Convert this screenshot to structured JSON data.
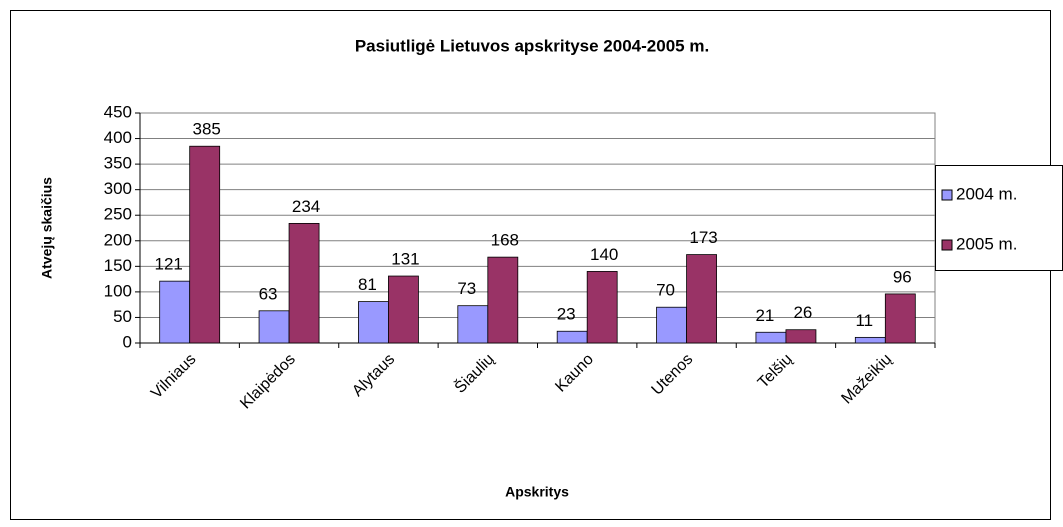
{
  "chart_data": {
    "type": "bar",
    "title": "Pasiutligė Lietuvos apskrityse 2004-2005 m.",
    "x_label": "Apskritys",
    "y_label": "Atvejų skaičius",
    "categories": [
      "Vilniaus",
      "Klaipėdos",
      "Alytaus",
      "Šiaulių",
      "Kauno",
      "Utenos",
      "Telšių",
      "Mažeikių"
    ],
    "series": [
      {
        "name": "2004 m.",
        "color": "#9999ff",
        "values": [
          121,
          63,
          81,
          73,
          23,
          70,
          21,
          11
        ]
      },
      {
        "name": "2005 m.",
        "color": "#993366",
        "values": [
          385,
          234,
          131,
          168,
          140,
          173,
          26,
          96
        ]
      }
    ],
    "ylim": [
      0,
      450
    ],
    "yticks": [
      0,
      50,
      100,
      150,
      200,
      250,
      300,
      350,
      400,
      450
    ],
    "grid": true,
    "legend": "right"
  }
}
